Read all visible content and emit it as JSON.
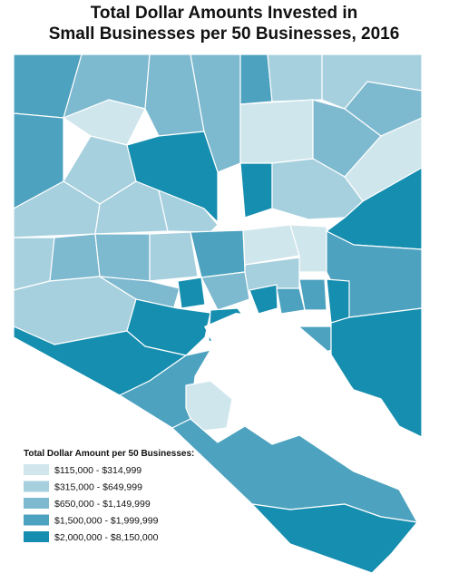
{
  "title": [
    "Total Dollar Amounts Invested in",
    "Small Businesses per 50 Businesses, 2016"
  ],
  "legend": {
    "title": "Total Dollar Amount per 50 Businesses:",
    "items": [
      {
        "label": "$115,000 - $314,999",
        "color": "#cfe6ec"
      },
      {
        "label": "$315,000 - $649,999",
        "color": "#a6d0de"
      },
      {
        "label": "$650,000 - $1,149,999",
        "color": "#7db9cf"
      },
      {
        "label": "$1,500,000 - $1,999,999",
        "color": "#4da2bf"
      },
      {
        "label": "$2,000,000 - $8,150,000",
        "color": "#168eaf"
      }
    ]
  }
}
